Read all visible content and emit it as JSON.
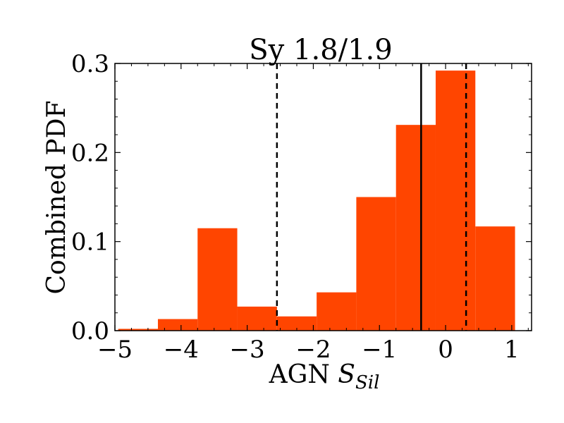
{
  "chart_data": {
    "type": "bar",
    "title": "Sy 1.8/1.9",
    "xlabel": {
      "prefix": "AGN ",
      "symbol": "S",
      "subscript": "Sil"
    },
    "ylabel": "Combined PDF",
    "xlim": [
      -5.0,
      1.3
    ],
    "ylim": [
      0.0,
      0.3
    ],
    "xticks": [
      -5,
      -4,
      -3,
      -2,
      -1,
      0,
      1
    ],
    "xtick_labels": [
      "−5",
      "−4",
      "−3",
      "−2",
      "−1",
      "0",
      "1"
    ],
    "yticks": [
      0.0,
      0.1,
      0.2,
      0.3
    ],
    "ytick_labels": [
      "0.0",
      "0.1",
      "0.2",
      "0.3"
    ],
    "bins": [
      {
        "x0": -4.95,
        "x1": -4.35,
        "value": 0.002
      },
      {
        "x0": -4.35,
        "x1": -3.75,
        "value": 0.013
      },
      {
        "x0": -3.75,
        "x1": -3.15,
        "value": 0.115
      },
      {
        "x0": -3.15,
        "x1": -2.55,
        "value": 0.027
      },
      {
        "x0": -2.55,
        "x1": -1.95,
        "value": 0.016
      },
      {
        "x0": -1.95,
        "x1": -1.35,
        "value": 0.043
      },
      {
        "x0": -1.35,
        "x1": -0.75,
        "value": 0.15
      },
      {
        "x0": -0.75,
        "x1": -0.15,
        "value": 0.231
      },
      {
        "x0": -0.15,
        "x1": 0.45,
        "value": 0.292
      },
      {
        "x0": 0.45,
        "x1": 1.05,
        "value": 0.117
      }
    ],
    "median_line": -0.37,
    "interval_lines": [
      -2.55,
      0.31
    ],
    "bar_color": "#ff4500",
    "line_color": "#000000",
    "grid": false
  }
}
